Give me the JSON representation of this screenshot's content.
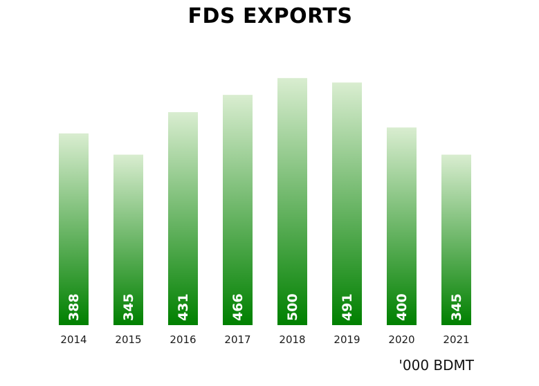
{
  "chart_data": {
    "type": "bar",
    "title": "FDS EXPORTS",
    "unit_label": "'000 BDMT",
    "categories": [
      "2014",
      "2015",
      "2016",
      "2017",
      "2018",
      "2019",
      "2020",
      "2021"
    ],
    "values": [
      388,
      345,
      431,
      466,
      500,
      491,
      400,
      345
    ],
    "bar_gradient": {
      "top": "#d9edd0",
      "bottom": "#008000"
    },
    "value_label_color": "#ffffff",
    "grid": false,
    "legend": "none"
  }
}
